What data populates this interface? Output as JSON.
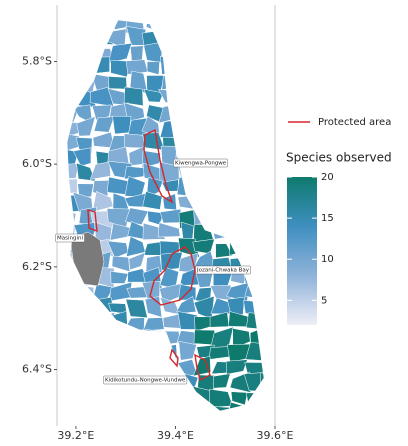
{
  "map": {
    "xlim": [
      39.162,
      39.6
    ],
    "ylim": [
      -6.51,
      -5.69
    ],
    "xticks": [
      {
        "value": 39.2,
        "label": "39.2°E"
      },
      {
        "value": 39.4,
        "label": "39.4°E"
      },
      {
        "value": 39.6,
        "label": "39.6°E"
      }
    ],
    "yticks": [
      {
        "value": -5.8,
        "label": "5.8°S"
      },
      {
        "value": -6.0,
        "label": "6.0°S"
      },
      {
        "value": -6.2,
        "label": "6.2°S"
      },
      {
        "value": -6.4,
        "label": "6.4°S"
      }
    ],
    "annotations": [
      "Kiwengwa-Pongwe",
      "Masingini",
      "Jozani-Chwaka Bay",
      "Kidikotundu-Nongwe-Vundwe"
    ],
    "legend": {
      "protected_area": "Protected area",
      "protected_color": "#d7262b",
      "colorbar": {
        "title": "Species observed",
        "lim": [
          2,
          20
        ],
        "ticks": [
          5,
          10,
          15,
          20
        ],
        "colors": [
          "#efeef7",
          "#8fb3d9",
          "#3f8fc0",
          "#0e7a6d"
        ]
      }
    }
  }
}
